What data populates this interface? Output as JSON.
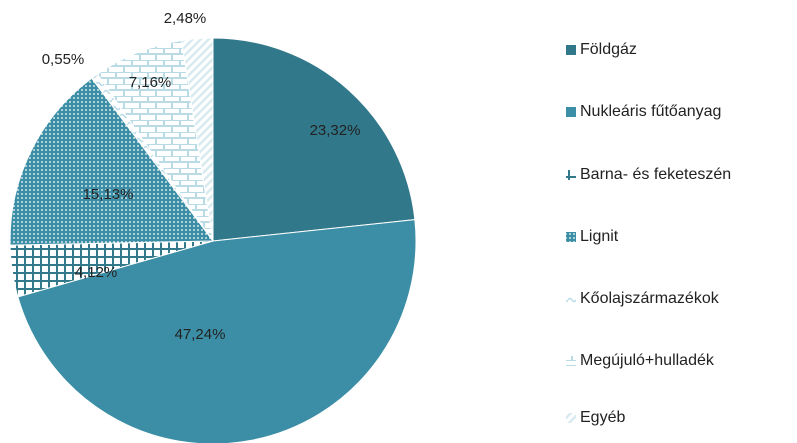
{
  "chart_data": {
    "type": "pie",
    "categories": [
      "Földgáz",
      "Nukleáris fűtőanyag",
      "Barna- és feketeszén",
      "Lignit",
      "Kőolajszármazékok",
      "Megújuló+hulladék",
      "Egyéb"
    ],
    "values": [
      23.32,
      47.24,
      4.12,
      15.13,
      0.55,
      7.16,
      2.48
    ],
    "value_labels": [
      "23,32%",
      "47,24%",
      "4,12%",
      "15,13%",
      "0,55%",
      "7,16%",
      "2,48%"
    ],
    "colors": [
      "#31788a",
      "#3b8ea5",
      "#31788a",
      "#3b8ea5",
      "#b8dbe6",
      "#b8dbe6",
      "#d8eaf0"
    ],
    "patterns": [
      "solid",
      "solid",
      "grid",
      "dots",
      "wave",
      "brick",
      "diagonal"
    ],
    "legend": "right"
  }
}
